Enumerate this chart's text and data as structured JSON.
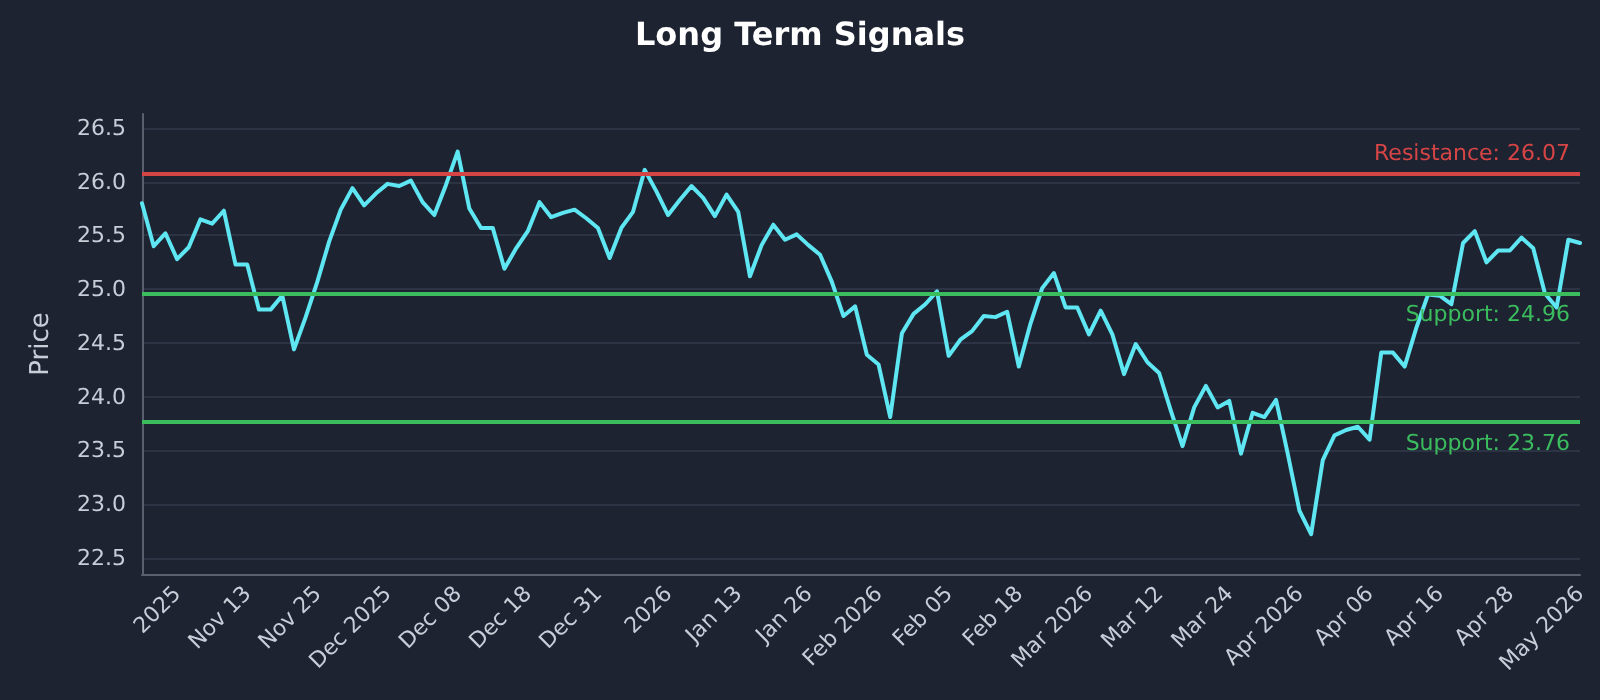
{
  "chart_data": {
    "type": "line",
    "title": "Long Term Signals",
    "ylabel": "Price",
    "categories": [
      null,
      null,
      null,
      "2025",
      null,
      null,
      null,
      null,
      null,
      "Nov 13",
      null,
      null,
      null,
      null,
      null,
      "Nov 25",
      null,
      null,
      null,
      null,
      null,
      "Dec 2025",
      null,
      null,
      null,
      null,
      null,
      "Dec 08",
      null,
      null,
      null,
      null,
      null,
      "Dec 18",
      null,
      null,
      null,
      null,
      null,
      "Dec 31",
      null,
      null,
      null,
      null,
      null,
      "2026",
      null,
      null,
      null,
      null,
      null,
      "Jan 13",
      null,
      null,
      null,
      null,
      null,
      "Jan 26",
      null,
      null,
      null,
      null,
      null,
      "Feb 2026",
      null,
      null,
      null,
      null,
      null,
      "Feb 05",
      null,
      null,
      null,
      null,
      null,
      "Feb 18",
      null,
      null,
      null,
      null,
      null,
      "Mar 2026",
      null,
      null,
      null,
      null,
      null,
      "Mar 12",
      null,
      null,
      null,
      null,
      null,
      "Mar 24",
      null,
      null,
      null,
      null,
      null,
      "Apr 2026",
      null,
      null,
      null,
      null,
      null,
      "Apr 06",
      null,
      null,
      null,
      null,
      null,
      "Apr 16",
      null,
      null,
      null,
      null,
      null,
      "Apr 28",
      null,
      null,
      null,
      null,
      null,
      "May 2026"
    ],
    "series": [
      {
        "color": "#5ee6f2",
        "values": [
          25.8,
          25.4,
          25.52,
          25.28,
          25.39,
          25.65,
          25.61,
          25.73,
          25.23,
          25.23,
          24.81,
          24.81,
          24.94,
          24.44,
          24.74,
          25.07,
          25.44,
          25.74,
          25.94,
          25.78,
          25.89,
          25.98,
          25.96,
          26.01,
          25.81,
          25.69,
          25.97,
          26.28,
          25.75,
          25.57,
          25.57,
          25.19,
          25.38,
          25.54,
          25.81,
          25.67,
          25.71,
          25.74,
          25.66,
          25.57,
          25.29,
          25.57,
          25.72,
          26.11,
          25.91,
          25.69,
          25.83,
          25.96,
          25.85,
          25.68,
          25.88,
          25.72,
          25.12,
          25.41,
          25.6,
          25.46,
          25.51,
          25.41,
          25.32,
          25.07,
          24.75,
          24.84,
          24.39,
          24.3,
          23.81,
          24.59,
          24.77,
          24.86,
          24.98,
          24.38,
          24.53,
          24.61,
          24.75,
          24.74,
          24.79,
          24.28,
          24.68,
          25.01,
          25.15,
          24.83,
          24.83,
          24.58,
          24.8,
          24.58,
          24.21,
          24.49,
          24.32,
          24.22,
          23.87,
          23.54,
          23.9,
          24.1,
          23.9,
          23.96,
          23.47,
          23.85,
          23.81,
          23.97,
          23.47,
          22.94,
          22.72,
          23.41,
          23.64,
          23.69,
          23.72,
          23.6,
          24.41,
          24.41,
          24.28,
          24.64,
          24.95,
          24.94,
          24.86,
          25.43,
          25.54,
          25.25,
          25.36,
          25.36,
          25.48,
          25.38,
          24.96,
          24.83,
          25.46,
          25.43
        ]
      }
    ],
    "ylim": [
      22.35,
      26.63
    ],
    "yticks": [
      {
        "value": 22.5,
        "label": "22.5"
      },
      {
        "value": 23,
        "label": "23.0"
      },
      {
        "value": 23.5,
        "label": "23.5"
      },
      {
        "value": 24,
        "label": "24.0"
      },
      {
        "value": 24.5,
        "label": "24.5"
      },
      {
        "value": 25,
        "label": "25.0"
      },
      {
        "value": 25.5,
        "label": "25.5"
      },
      {
        "value": 26,
        "label": "26.0"
      },
      {
        "value": 26.5,
        "label": "26.5"
      }
    ],
    "ref_lines": [
      {
        "axis": "y",
        "value": 26.07,
        "label": "Resistance: 26.07",
        "color": "#d64545"
      },
      {
        "axis": "y",
        "value": 24.96,
        "label": "Support: 24.96",
        "color": "#3bbd5e"
      },
      {
        "axis": "y",
        "value": 23.76,
        "label": "Support: 23.76",
        "color": "#3bbd5e"
      }
    ],
    "grid": "y",
    "marker": "none",
    "line_style": "solid"
  }
}
